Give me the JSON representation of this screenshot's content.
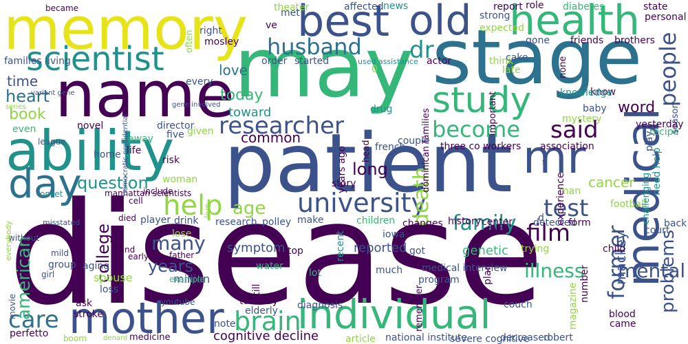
{
  "words": [
    {
      "text": "disease",
      "color": "#440154"
    },
    {
      "text": "patient",
      "color": "#3b528b"
    },
    {
      "text": "may",
      "color": "#35b779"
    },
    {
      "text": "memory",
      "color": "#e6e419"
    },
    {
      "text": "name",
      "color": "#440154"
    },
    {
      "text": "stage",
      "color": "#2c728e"
    },
    {
      "text": "ability",
      "color": "#21918c"
    },
    {
      "text": "mother",
      "color": "#3b528b"
    },
    {
      "text": "individual",
      "color": "#35b779"
    },
    {
      "text": "health",
      "color": "#35b779"
    },
    {
      "text": "best",
      "color": "#3b528b"
    },
    {
      "text": "old",
      "color": "#3b528b"
    },
    {
      "text": "study",
      "color": "#35b779"
    },
    {
      "text": "medical",
      "color": "#3b528b"
    },
    {
      "text": "mr",
      "color": "#3b528b"
    },
    {
      "text": "scientist",
      "color": "#21918c"
    },
    {
      "text": "day",
      "color": "#2c728e"
    },
    {
      "text": "university",
      "color": "#3b528b"
    },
    {
      "text": "care",
      "color": "#2c728e"
    },
    {
      "text": "brain",
      "color": "#35b779"
    },
    {
      "text": "people",
      "color": "#3b528b"
    },
    {
      "text": "researcher",
      "color": "#3b528b"
    },
    {
      "text": "husband",
      "color": "#2c728e"
    },
    {
      "text": "dr",
      "color": "#21918c"
    },
    {
      "text": "help",
      "color": "#90d743"
    },
    {
      "text": "family",
      "color": "#21918c"
    },
    {
      "text": "test",
      "color": "#3b528b"
    },
    {
      "text": "said",
      "color": "#440154"
    },
    {
      "text": "become",
      "color": "#35b779"
    },
    {
      "text": "former",
      "color": "#3b528b"
    },
    {
      "text": "film",
      "color": "#440154"
    },
    {
      "text": "mental",
      "color": "#3b528b"
    },
    {
      "text": "mackey",
      "color": "#3b528b"
    },
    {
      "text": "problems",
      "color": "#3b528b"
    },
    {
      "text": "illness",
      "color": "#35b779"
    },
    {
      "text": "time",
      "color": "#3b528b"
    },
    {
      "text": "heart",
      "color": "#2c728e"
    },
    {
      "text": "book",
      "color": "#90d743"
    },
    {
      "text": "love",
      "color": "#2c728e"
    },
    {
      "text": "today",
      "color": "#35b779"
    },
    {
      "text": "common",
      "color": "#440154"
    },
    {
      "text": "question",
      "color": "#21918c"
    },
    {
      "text": "long",
      "color": "#440154"
    },
    {
      "text": "age",
      "color": "#90d743"
    },
    {
      "text": "cancer",
      "color": "#90d743"
    },
    {
      "text": "word",
      "color": "#440154"
    },
    {
      "text": "death",
      "color": "#90d743"
    },
    {
      "text": "college",
      "color": "#440154"
    },
    {
      "text": "american",
      "color": "#35b779"
    },
    {
      "text": "many",
      "color": "#3b528b"
    },
    {
      "text": "years",
      "color": "#3b528b"
    },
    {
      "text": "toward",
      "color": "#21918c"
    },
    {
      "text": "symptom",
      "color": "#3b528b"
    },
    {
      "text": "genetic",
      "color": "#35b779"
    },
    {
      "text": "reported",
      "color": "#3b528b"
    },
    {
      "text": "cognitive decline",
      "color": "#440154"
    },
    {
      "text": "national institute",
      "color": "#3b528b"
    },
    {
      "text": "decreased",
      "color": "#3b528b"
    },
    {
      "text": "robert",
      "color": "#3b528b"
    },
    {
      "text": "perfetto",
      "color": "#440154"
    },
    {
      "text": "medicine",
      "color": "#440154"
    },
    {
      "text": "youtube",
      "color": "#3b528b"
    },
    {
      "text": "stroke",
      "color": "#440154"
    },
    {
      "text": "movie",
      "color": "#3b528b"
    },
    {
      "text": "aging",
      "color": "#3b528b"
    },
    {
      "text": "group",
      "color": "#3b528b"
    },
    {
      "text": "girl",
      "color": "#3b528b"
    },
    {
      "text": "mild",
      "color": "#3b528b"
    },
    {
      "text": "without",
      "color": "#3b528b"
    },
    {
      "text": "everybody",
      "color": "#90d743"
    },
    {
      "text": "misstated",
      "color": "#3b528b"
    },
    {
      "text": "spouse",
      "color": "#90d743"
    },
    {
      "text": "million",
      "color": "#3b528b"
    },
    {
      "text": "hand",
      "color": "#440154"
    },
    {
      "text": "early",
      "color": "#440154"
    },
    {
      "text": "father",
      "color": "#440154"
    },
    {
      "text": "player",
      "color": "#3b528b"
    },
    {
      "text": "drink",
      "color": "#3b528b"
    },
    {
      "text": "lose",
      "color": "#90d743"
    },
    {
      "text": "died",
      "color": "#440154"
    },
    {
      "text": "cell",
      "color": "#440154"
    },
    {
      "text": "include",
      "color": "#440154"
    },
    {
      "text": "home",
      "color": "#3b528b"
    },
    {
      "text": "life",
      "color": "#440154"
    },
    {
      "text": "risk",
      "color": "#440154"
    },
    {
      "text": "woman",
      "color": "#90d743"
    },
    {
      "text": "onset",
      "color": "#21918c"
    },
    {
      "text": "manhattan scientists",
      "color": "#440154"
    },
    {
      "text": "director",
      "color": "#3b528b"
    },
    {
      "text": "novel",
      "color": "#440154"
    },
    {
      "text": "away",
      "color": "#35b779"
    },
    {
      "text": "five",
      "color": "#3b528b"
    },
    {
      "text": "given",
      "color": "#90d743"
    },
    {
      "text": "even",
      "color": "#35b779"
    },
    {
      "text": "league",
      "color": "#3b528b"
    },
    {
      "text": "couple",
      "color": "#3b528b"
    },
    {
      "text": "french",
      "color": "#3b528b"
    },
    {
      "text": "three co workers",
      "color": "#440154"
    },
    {
      "text": "association",
      "color": "#440154"
    },
    {
      "text": "story",
      "color": "#440154"
    },
    {
      "text": "years ago",
      "color": "#440154"
    },
    {
      "text": "live",
      "color": "#90d743"
    },
    {
      "text": "research",
      "color": "#3b528b"
    },
    {
      "text": "polley",
      "color": "#3b528b"
    },
    {
      "text": "make",
      "color": "#3b528b"
    },
    {
      "text": "children",
      "color": "#35b779"
    },
    {
      "text": "changes",
      "color": "#440154"
    },
    {
      "text": "history",
      "color": "#440154"
    },
    {
      "text": "center",
      "color": "#440154"
    },
    {
      "text": "detected",
      "color": "#3b528b"
    },
    {
      "text": "form",
      "color": "#440154"
    },
    {
      "text": "take",
      "color": "#440154"
    },
    {
      "text": "court",
      "color": "#3b528b"
    },
    {
      "text": "football",
      "color": "#90d743"
    },
    {
      "text": "back",
      "color": "#3b528b"
    },
    {
      "text": "challenging",
      "color": "#21918c"
    },
    {
      "text": "need help",
      "color": "#21918c"
    },
    {
      "text": "play",
      "color": "#3b528b"
    },
    {
      "text": "recipe",
      "color": "#35b779"
    },
    {
      "text": "season",
      "color": "#3b528b"
    },
    {
      "text": "yesterday",
      "color": "#440154"
    },
    {
      "text": "man",
      "color": "#90d743"
    },
    {
      "text": "experience",
      "color": "#440154"
    },
    {
      "text": "baby",
      "color": "#3b528b"
    },
    {
      "text": "mystery",
      "color": "#90d743"
    },
    {
      "text": "know",
      "color": "#440154"
    },
    {
      "text": "knowledge",
      "color": "#21918c"
    },
    {
      "text": "think",
      "color": "#90d743"
    },
    {
      "text": "cake",
      "color": "#3b528b"
    },
    {
      "text": "late",
      "color": "#90d743"
    },
    {
      "text": "none",
      "color": "#440154"
    },
    {
      "text": "gone",
      "color": "#3b528b"
    },
    {
      "text": "friends",
      "color": "#440154"
    },
    {
      "text": "brothers",
      "color": "#440154"
    },
    {
      "text": "expected",
      "color": "#90d743"
    },
    {
      "text": "strong",
      "color": "#3b528b"
    },
    {
      "text": "report",
      "color": "#440154"
    },
    {
      "text": "role",
      "color": "#440154"
    },
    {
      "text": "diabetes",
      "color": "#35b779"
    },
    {
      "text": "state",
      "color": "#440154"
    },
    {
      "text": "personal",
      "color": "#440154"
    },
    {
      "text": "news",
      "color": "#21918c"
    },
    {
      "text": "affected",
      "color": "#3b528b"
    },
    {
      "text": "theater",
      "color": "#90d743"
    },
    {
      "text": "met",
      "color": "#3b528b"
    },
    {
      "text": "ve",
      "color": "#440154"
    },
    {
      "text": "right",
      "color": "#3b528b"
    },
    {
      "text": "mosley",
      "color": "#440154"
    },
    {
      "text": "often",
      "color": "#90d743"
    },
    {
      "text": "actor",
      "color": "#440154"
    },
    {
      "text": "order",
      "color": "#3b528b"
    },
    {
      "text": "started",
      "color": "#3b528b"
    },
    {
      "text": "used assistance",
      "color": "#21918c"
    },
    {
      "text": "families living",
      "color": "#3b528b"
    },
    {
      "text": "every",
      "color": "#3b528b"
    },
    {
      "text": "series",
      "color": "#90d743"
    },
    {
      "text": "variant gene",
      "color": "#3b528b"
    },
    {
      "text": "democratic presidential",
      "color": "#3b528b"
    },
    {
      "text": "gene involved",
      "color": "#3b528b"
    },
    {
      "text": "dominican families",
      "color": "#440154"
    },
    {
      "text": "important",
      "color": "#440154"
    },
    {
      "text": "drug",
      "color": "#21918c"
    },
    {
      "text": "head",
      "color": "#440154"
    },
    {
      "text": "got",
      "color": "#3b528b"
    },
    {
      "text": "top",
      "color": "#440154"
    },
    {
      "text": "water",
      "color": "#35b779"
    },
    {
      "text": "iowa",
      "color": "#3b528b"
    },
    {
      "text": "child",
      "color": "#440154"
    },
    {
      "text": "trying",
      "color": "#90d743"
    },
    {
      "text": "recent",
      "color": "#21918c"
    },
    {
      "text": "medical interview",
      "color": "#3b528b"
    },
    {
      "text": "much",
      "color": "#3b528b"
    },
    {
      "text": "lot",
      "color": "#35b779"
    },
    {
      "text": "plan",
      "color": "#440154"
    },
    {
      "text": "program",
      "color": "#3b528b"
    },
    {
      "text": "number",
      "color": "#440154"
    },
    {
      "text": "magazine",
      "color": "#90d743"
    },
    {
      "text": "blood",
      "color": "#440154"
    },
    {
      "text": "came",
      "color": "#440154"
    },
    {
      "text": "couch",
      "color": "#3b528b"
    },
    {
      "text": "remember",
      "color": "#440154"
    },
    {
      "text": "diagnosis",
      "color": "#3b528b"
    },
    {
      "text": "still",
      "color": "#440154"
    },
    {
      "text": "tuesday",
      "color": "#440154"
    },
    {
      "text": "elderly",
      "color": "#3b528b"
    },
    {
      "text": "note",
      "color": "#3b528b"
    },
    {
      "text": "loss",
      "color": "#3b528b"
    },
    {
      "text": "ask",
      "color": "#440154"
    },
    {
      "text": "example",
      "color": "#35b779"
    },
    {
      "text": "boom",
      "color": "#90d743"
    },
    {
      "text": "denard",
      "color": "#90d743"
    },
    {
      "text": "severe cognitive",
      "color": "#3b528b"
    },
    {
      "text": "article",
      "color": "#90d743"
    },
    {
      "text": "became",
      "color": "#440154"
    },
    {
      "text": "0",
      "color": "#90d743"
    },
    {
      "text": "t",
      "color": "#3b528b"
    },
    {
      "text": "d",
      "color": "#3b528b"
    },
    {
      "text": "n",
      "color": "#90d743"
    }
  ]
}
